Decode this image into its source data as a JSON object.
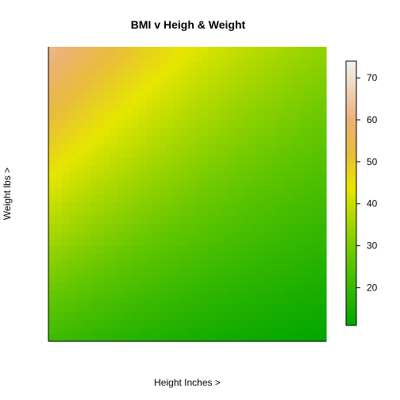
{
  "chart_data": {
    "type": "heatmap",
    "title": "BMI v Heigh & Weight",
    "xlabel": "Height Inches >",
    "ylabel": "Weight lbs >",
    "x": {
      "from": 58,
      "to": 80,
      "steps": 40
    },
    "y": {
      "from": 100,
      "to": 300,
      "steps": 40
    },
    "value_formula": "703 * weight / height^2",
    "color_scale": {
      "min": 11,
      "max": 74,
      "stops": [
        {
          "value": 11,
          "color": "#00A600"
        },
        {
          "value": 27,
          "color": "#63C600"
        },
        {
          "value": 44,
          "color": "#E6E600"
        },
        {
          "value": 52,
          "color": "#E9BD3A"
        },
        {
          "value": 60,
          "color": "#ECB176"
        },
        {
          "value": 74,
          "color": "#F2F2F2"
        }
      ]
    },
    "legend": {
      "placement": "right",
      "ticks": [
        20,
        30,
        40,
        50,
        60,
        70
      ]
    },
    "axes_shown": false,
    "grid": false
  }
}
